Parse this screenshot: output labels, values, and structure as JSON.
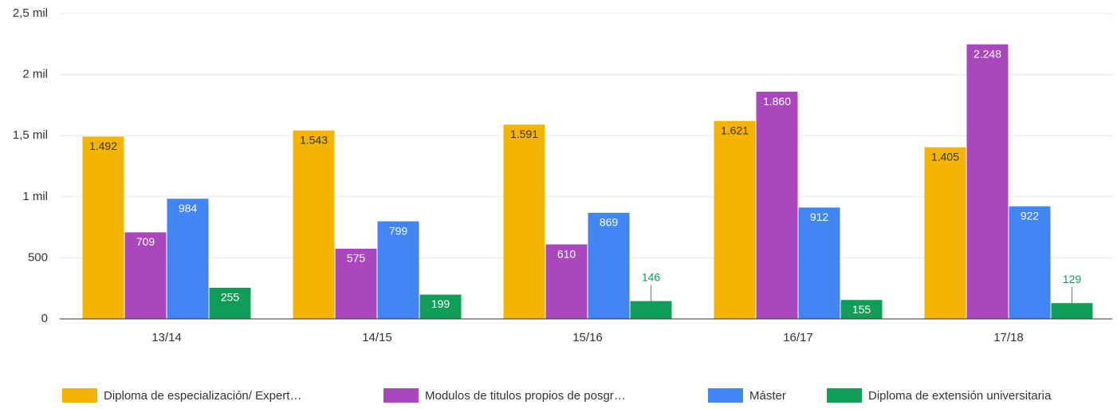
{
  "chart_data": {
    "type": "bar",
    "categories": [
      "13/14",
      "14/15",
      "15/16",
      "16/17",
      "17/18"
    ],
    "series": [
      {
        "name": "Diploma de especialización/ Expert…",
        "color": "#f4b400",
        "values": [
          1492,
          1543,
          1591,
          1621,
          1405
        ],
        "value_labels": [
          "1.492",
          "1.543",
          "1.591",
          "1.621",
          "1.405"
        ]
      },
      {
        "name": "Modulos de titulos propios de posgr…",
        "color": "#ab47bc",
        "values": [
          709,
          575,
          610,
          1860,
          2248
        ],
        "value_labels": [
          "709",
          "575",
          "610",
          "1.860",
          "2.248"
        ]
      },
      {
        "name": "Máster",
        "color": "#4285f4",
        "values": [
          984,
          799,
          869,
          912,
          922
        ]
      },
      {
        "name": "Diploma de extensión universitaria",
        "color": "#0f9d58",
        "values": [
          255,
          199,
          146,
          155,
          129
        ]
      }
    ],
    "ylim": [
      0,
      2500
    ],
    "yticks": [
      0,
      500,
      {
        "value": 1000,
        "label": "1 mil"
      },
      {
        "value": 1500,
        "label": "1,5 mil"
      },
      {
        "value": 2000,
        "label": "2 mil"
      },
      {
        "value": 2500,
        "label": "2,5 mil"
      }
    ],
    "grid": true,
    "legend": "bottom"
  }
}
